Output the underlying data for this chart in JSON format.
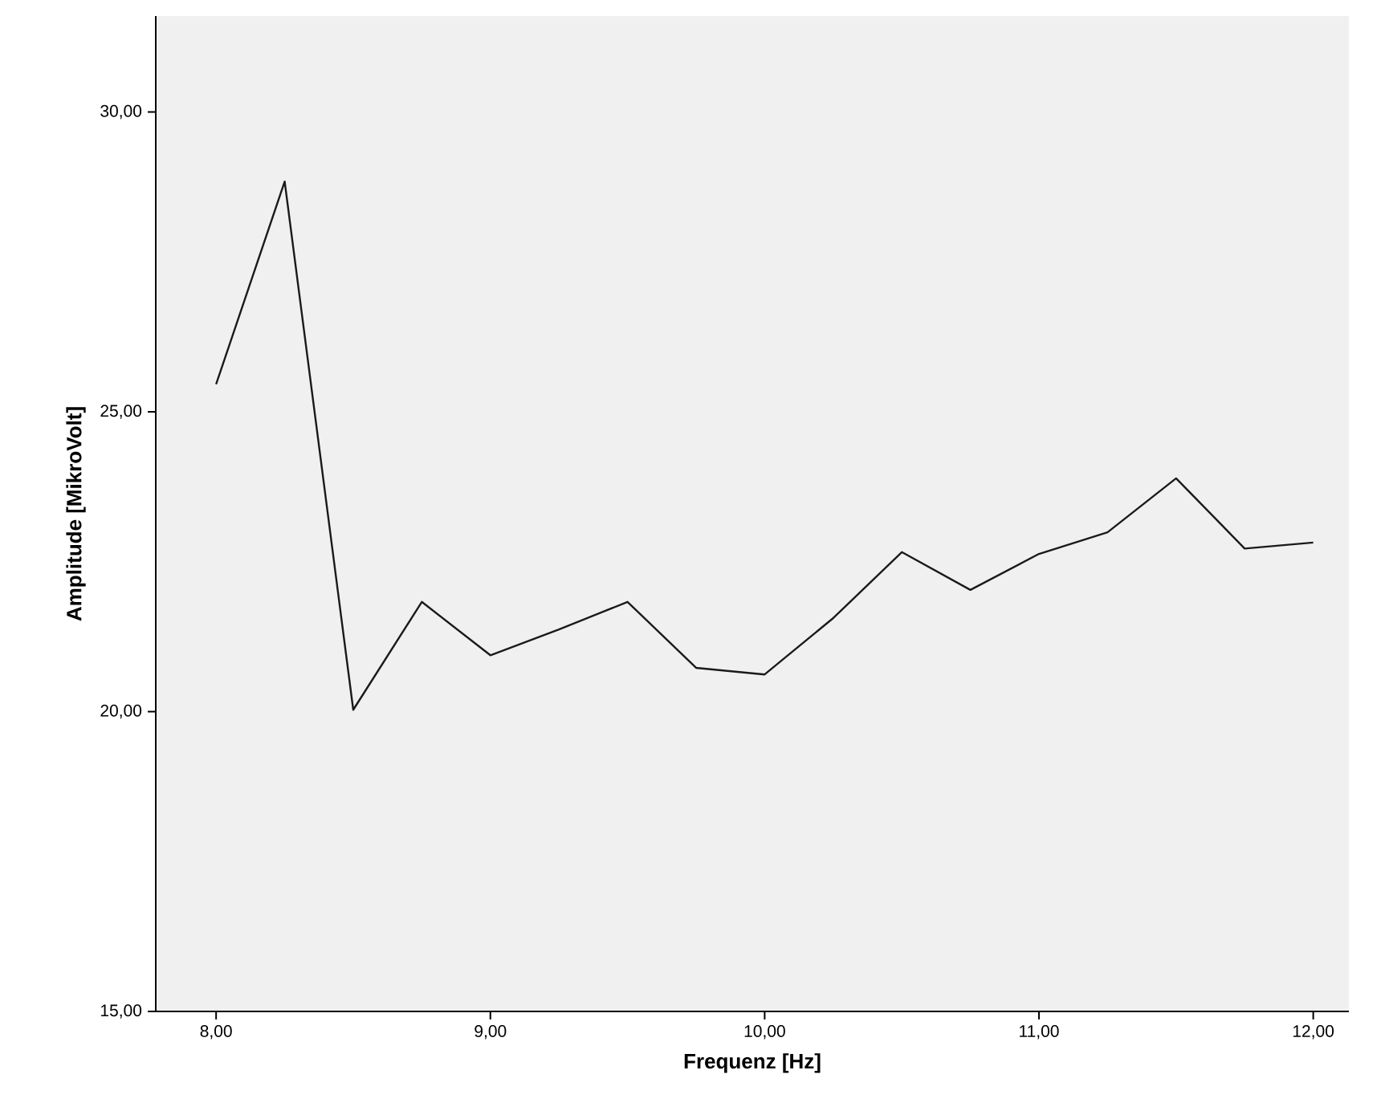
{
  "chart_data": {
    "type": "line",
    "xlabel": "Frequenz [Hz]",
    "ylabel": "Amplitude [MikroVolt]",
    "x": [
      8.0,
      8.25,
      8.5,
      8.75,
      9.0,
      9.25,
      9.5,
      9.75,
      10.0,
      10.25,
      10.5,
      10.75,
      11.0,
      11.25,
      11.5,
      11.75,
      12.0
    ],
    "series": [
      {
        "color": "#1a1a1a",
        "values": [
          25.46,
          28.84,
          20.03,
          21.83,
          20.94,
          21.37,
          21.83,
          20.73,
          20.62,
          21.56,
          22.66,
          22.03,
          22.63,
          22.99,
          23.89,
          22.72,
          22.82
        ]
      }
    ],
    "xlim": [
      7.78,
      12.13
    ],
    "ylim": [
      15,
      31.6
    ],
    "xticks": [
      {
        "value": 8,
        "label": "8,00"
      },
      {
        "value": 9,
        "label": "9,00"
      },
      {
        "value": 10,
        "label": "10,00"
      },
      {
        "value": 11,
        "label": "11,00"
      },
      {
        "value": 12,
        "label": "12,00"
      }
    ],
    "yticks": [
      {
        "value": 15,
        "label": "15,00"
      },
      {
        "value": 20,
        "label": "20,00"
      },
      {
        "value": 25,
        "label": "25,00"
      },
      {
        "value": 30,
        "label": "30,00"
      }
    ],
    "grid": false,
    "marker": "none",
    "line_style": "solid"
  }
}
